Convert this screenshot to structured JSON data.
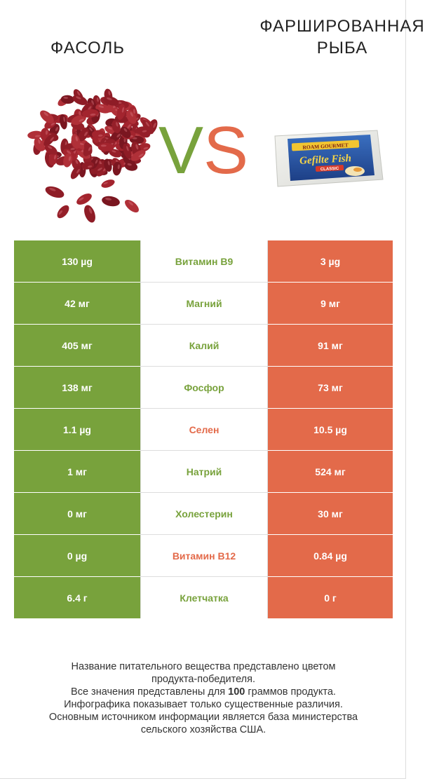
{
  "header": {
    "left_title": "ФАСОЛЬ",
    "right_title_line1": "ФАРШИРОВАННАЯ",
    "right_title_line2": "РЫБА",
    "vs_v": "V",
    "vs_s": "S"
  },
  "colors": {
    "left_winner": "#78a23c",
    "right_winner": "#e36a4a",
    "neutral_text": "#333333"
  },
  "images": {
    "left": "kidney-beans-image",
    "right": "gefilte-fish-package-image",
    "package_brand": "ROAM GOURMET",
    "package_product": "Gefilte Fish",
    "package_variant": "CLASSIC"
  },
  "rows": [
    {
      "nutrient": "Витамин B9",
      "left": "130 µg",
      "right": "3 µg",
      "winner": "left"
    },
    {
      "nutrient": "Магний",
      "left": "42 мг",
      "right": "9 мг",
      "winner": "left"
    },
    {
      "nutrient": "Калий",
      "left": "405 мг",
      "right": "91 мг",
      "winner": "left"
    },
    {
      "nutrient": "Фосфор",
      "left": "138 мг",
      "right": "73 мг",
      "winner": "left"
    },
    {
      "nutrient": "Селен",
      "left": "1.1 µg",
      "right": "10.5 µg",
      "winner": "right"
    },
    {
      "nutrient": "Натрий",
      "left": "1 мг",
      "right": "524 мг",
      "winner": "left"
    },
    {
      "nutrient": "Холестерин",
      "left": "0 мг",
      "right": "30 мг",
      "winner": "left"
    },
    {
      "nutrient": "Витамин B12",
      "left": "0 µg",
      "right": "0.84 µg",
      "winner": "right"
    },
    {
      "nutrient": "Клетчатка",
      "left": "6.4 г",
      "right": "0 г",
      "winner": "left"
    }
  ],
  "footnote": {
    "line1": "Название питательного вещества представлено цветом",
    "line2": "продукта-победителя.",
    "line3_pre": "Все значения представлены для ",
    "line3_num": "100",
    "line3_post": " граммов продукта.",
    "line4": "Инфографика показывает только существенные различия.",
    "line5": "Основным источником информации является база министерства",
    "line6": "сельского хозяйства США."
  }
}
